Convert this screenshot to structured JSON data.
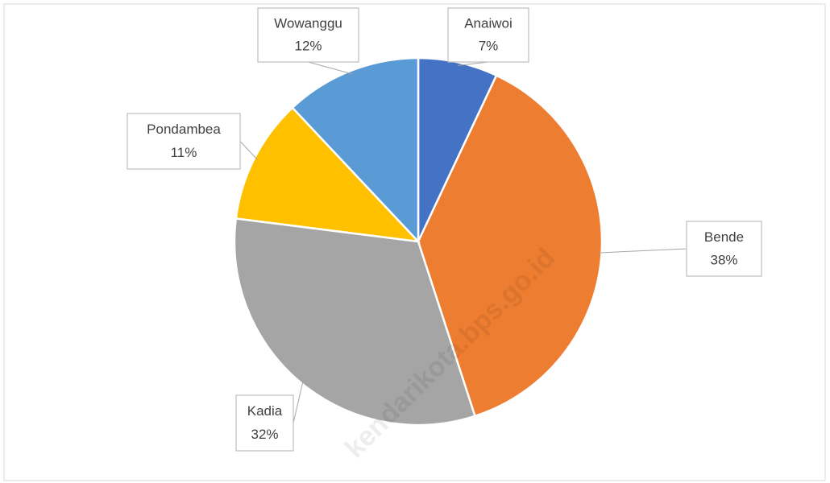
{
  "chart_data": {
    "type": "pie",
    "categories": [
      "Anaiwoi",
      "Bende",
      "Kadia",
      "Pondambea",
      "Wowanggu"
    ],
    "values": [
      7,
      38,
      32,
      11,
      12
    ],
    "value_labels": [
      "7%",
      "38%",
      "32%",
      "11%",
      "12%"
    ],
    "colors": [
      "#4472c4",
      "#ed7d31",
      "#a5a5a5",
      "#ffc000",
      "#5b9bd5"
    ],
    "watermark": "kendarikota.bps.go.id"
  }
}
